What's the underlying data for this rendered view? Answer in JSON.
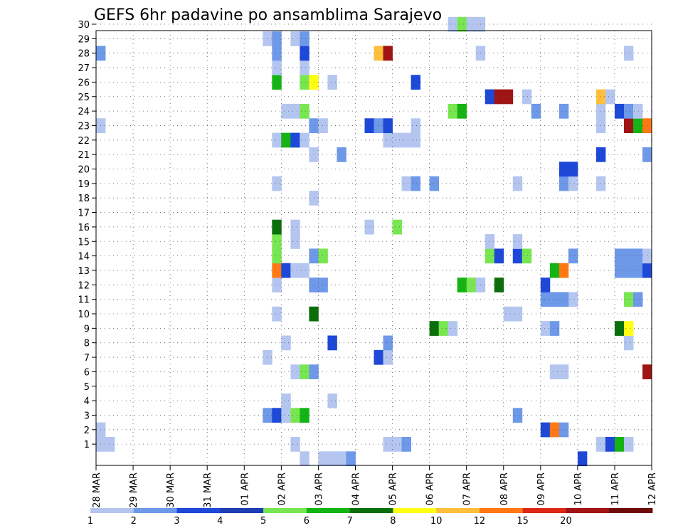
{
  "chart_data": {
    "type": "heatmap",
    "title": "GEFS 6hr padavine po ansamblima Sarajevo",
    "y_ticks": [
      "1",
      "2",
      "3",
      "4",
      "5",
      "6",
      "7",
      "8",
      "9",
      "10",
      "11",
      "12",
      "13",
      "14",
      "15",
      "16",
      "17",
      "18",
      "19",
      "20",
      "21",
      "22",
      "23",
      "24",
      "25",
      "26",
      "27",
      "28",
      "29",
      "30"
    ],
    "x_ticks": [
      "28 MAR",
      "29 MAR",
      "30 MAR",
      "31 MAR",
      "01 APR",
      "02 APR",
      "03 APR",
      "04 APR",
      "05 APR",
      "06 APR",
      "07 APR",
      "08 APR",
      "09 APR",
      "10 APR",
      "11 APR",
      "12 APR"
    ],
    "steps_per_day": 4,
    "grid": true,
    "colorbar": {
      "labels": [
        "1",
        "2",
        "3",
        "4",
        "5",
        "6",
        "7",
        "8",
        "10",
        "12",
        "15",
        "20"
      ],
      "colors": [
        "#b4c6f0",
        "#6e98e8",
        "#1e48d8",
        "#1e3cb4",
        "#78e650",
        "#14b414",
        "#0a6e0a",
        "#ffff14",
        "#ffbe3c",
        "#ff7814",
        "#dc2814",
        "#a01414",
        "#6e0a0a"
      ]
    },
    "cells": [
      [
        1,
        0,
        1
      ],
      [
        1,
        1,
        1
      ],
      [
        1,
        21,
        1
      ],
      [
        1,
        31,
        1
      ],
      [
        1,
        32,
        1
      ],
      [
        1,
        33,
        2
      ],
      [
        1,
        54,
        1
      ],
      [
        1,
        55,
        3
      ],
      [
        1,
        56,
        6
      ],
      [
        1,
        57,
        1
      ],
      [
        2,
        0,
        1
      ],
      [
        2,
        48,
        3
      ],
      [
        2,
        49,
        10
      ],
      [
        2,
        50,
        2
      ],
      [
        3,
        18,
        2
      ],
      [
        3,
        19,
        3
      ],
      [
        3,
        20,
        1
      ],
      [
        3,
        21,
        5
      ],
      [
        3,
        22,
        6
      ],
      [
        3,
        45,
        2
      ],
      [
        4,
        20,
        1
      ],
      [
        4,
        25,
        1
      ],
      [
        6,
        21,
        1
      ],
      [
        6,
        22,
        5
      ],
      [
        6,
        23,
        2
      ],
      [
        6,
        49,
        1
      ],
      [
        6,
        50,
        1
      ],
      [
        6,
        59,
        12
      ],
      [
        7,
        18,
        1
      ],
      [
        7,
        30,
        3
      ],
      [
        7,
        31,
        1
      ],
      [
        8,
        20,
        1
      ],
      [
        8,
        25,
        3
      ],
      [
        8,
        31,
        2
      ],
      [
        8,
        57,
        1
      ],
      [
        9,
        36,
        7
      ],
      [
        9,
        37,
        5
      ],
      [
        9,
        38,
        1
      ],
      [
        9,
        48,
        1
      ],
      [
        9,
        49,
        2
      ],
      [
        9,
        56,
        7
      ],
      [
        9,
        57,
        8
      ],
      [
        10,
        19,
        1
      ],
      [
        10,
        23,
        7
      ],
      [
        10,
        44,
        1
      ],
      [
        10,
        45,
        1
      ],
      [
        11,
        51,
        1
      ],
      [
        11,
        48,
        2
      ],
      [
        11,
        49,
        2
      ],
      [
        11,
        50,
        2
      ],
      [
        11,
        57,
        5
      ],
      [
        11,
        58,
        2
      ],
      [
        12,
        19,
        1
      ],
      [
        12,
        23,
        2
      ],
      [
        12,
        24,
        2
      ],
      [
        12,
        39,
        6
      ],
      [
        12,
        40,
        5
      ],
      [
        12,
        41,
        1
      ],
      [
        12,
        43,
        7
      ],
      [
        12,
        48,
        3
      ],
      [
        13,
        19,
        10
      ],
      [
        13,
        20,
        3
      ],
      [
        13,
        21,
        1
      ],
      [
        13,
        22,
        1
      ],
      [
        13,
        49,
        6
      ],
      [
        13,
        50,
        10
      ],
      [
        13,
        56,
        2
      ],
      [
        13,
        57,
        2
      ],
      [
        13,
        58,
        2
      ],
      [
        13,
        59,
        3
      ],
      [
        14,
        19,
        5
      ],
      [
        14,
        23,
        2
      ],
      [
        14,
        24,
        5
      ],
      [
        14,
        42,
        5
      ],
      [
        14,
        43,
        3
      ],
      [
        14,
        45,
        3
      ],
      [
        14,
        46,
        5
      ],
      [
        14,
        51,
        2
      ],
      [
        14,
        56,
        2
      ],
      [
        14,
        57,
        2
      ],
      [
        14,
        58,
        2
      ],
      [
        14,
        59,
        1
      ],
      [
        15,
        19,
        5
      ],
      [
        15,
        21,
        1
      ],
      [
        15,
        42,
        1
      ],
      [
        15,
        45,
        1
      ],
      [
        16,
        19,
        7
      ],
      [
        16,
        21,
        1
      ],
      [
        16,
        29,
        1
      ],
      [
        16,
        32,
        5
      ],
      [
        18,
        23,
        1
      ],
      [
        19,
        19,
        1
      ],
      [
        19,
        33,
        1
      ],
      [
        19,
        34,
        2
      ],
      [
        19,
        36,
        2
      ],
      [
        19,
        45,
        1
      ],
      [
        19,
        50,
        2
      ],
      [
        19,
        51,
        1
      ],
      [
        19,
        54,
        1
      ],
      [
        20,
        50,
        3
      ],
      [
        20,
        51,
        3
      ],
      [
        21,
        23,
        1
      ],
      [
        21,
        26,
        2
      ],
      [
        21,
        54,
        3
      ],
      [
        21,
        59,
        2
      ],
      [
        22,
        19,
        1
      ],
      [
        22,
        20,
        6
      ],
      [
        22,
        21,
        3
      ],
      [
        22,
        22,
        1
      ],
      [
        22,
        31,
        1
      ],
      [
        22,
        32,
        1
      ],
      [
        22,
        33,
        1
      ],
      [
        22,
        34,
        1
      ],
      [
        23,
        0,
        1
      ],
      [
        23,
        23,
        2
      ],
      [
        23,
        24,
        1
      ],
      [
        23,
        29,
        3
      ],
      [
        23,
        30,
        2
      ],
      [
        23,
        31,
        3
      ],
      [
        23,
        34,
        1
      ],
      [
        23,
        54,
        1
      ],
      [
        23,
        57,
        12
      ],
      [
        23,
        58,
        6
      ],
      [
        23,
        59,
        10
      ],
      [
        24,
        20,
        1
      ],
      [
        24,
        21,
        1
      ],
      [
        24,
        22,
        5
      ],
      [
        24,
        38,
        5
      ],
      [
        24,
        39,
        6
      ],
      [
        24,
        47,
        2
      ],
      [
        24,
        50,
        2
      ],
      [
        24,
        54,
        1
      ],
      [
        24,
        56,
        3
      ],
      [
        24,
        57,
        2
      ],
      [
        24,
        58,
        1
      ],
      [
        25,
        42,
        3
      ],
      [
        25,
        43,
        12
      ],
      [
        25,
        44,
        12
      ],
      [
        25,
        46,
        1
      ],
      [
        25,
        54,
        9
      ],
      [
        25,
        55,
        1
      ],
      [
        26,
        19,
        6
      ],
      [
        26,
        22,
        5
      ],
      [
        26,
        23,
        8
      ],
      [
        26,
        25,
        1
      ],
      [
        26,
        34,
        3
      ],
      [
        27,
        19,
        1
      ],
      [
        27,
        22,
        1
      ],
      [
        28,
        0,
        2
      ],
      [
        28,
        19,
        2
      ],
      [
        28,
        22,
        3
      ],
      [
        28,
        30,
        9
      ],
      [
        28,
        31,
        12
      ],
      [
        28,
        41,
        1
      ],
      [
        28,
        57,
        1
      ],
      [
        29,
        18,
        1
      ],
      [
        29,
        19,
        2
      ],
      [
        29,
        21,
        1
      ],
      [
        29,
        22,
        2
      ],
      [
        30,
        38,
        1
      ],
      [
        30,
        39,
        5
      ],
      [
        30,
        40,
        1
      ],
      [
        30,
        41,
        1
      ],
      [
        0,
        22,
        1
      ],
      [
        0,
        24,
        1
      ],
      [
        0,
        25,
        1
      ],
      [
        0,
        26,
        1
      ],
      [
        0,
        27,
        2
      ],
      [
        0,
        52,
        3
      ]
    ]
  }
}
